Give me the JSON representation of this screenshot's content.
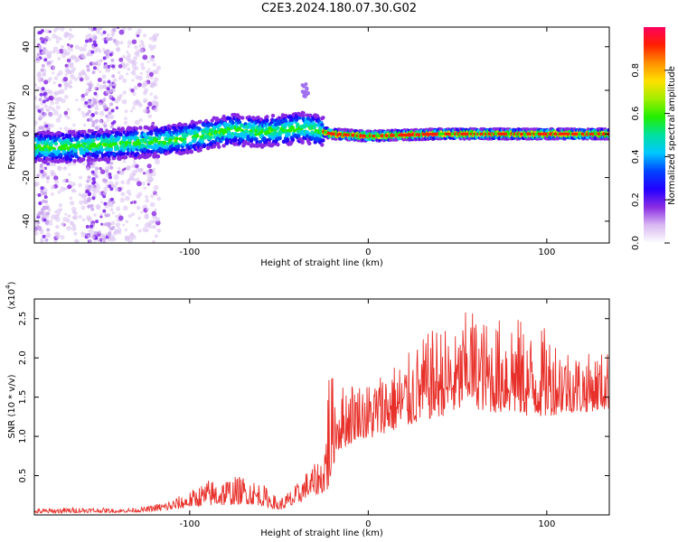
{
  "title": "C2E3.2024.180.07.30.G02",
  "chart_data": [
    {
      "type": "heatmap",
      "xlabel": "Height of straight line (km)",
      "ylabel": "Frequency (Hz)",
      "xlim": [
        -187,
        135
      ],
      "ylim": [
        -50,
        49
      ],
      "x_ticks": [
        -100,
        0,
        100
      ],
      "y_ticks": [
        -40,
        -20,
        0,
        20,
        40
      ],
      "colorbar": {
        "label": "Normalized spectral amplitude",
        "range": [
          0,
          1
        ],
        "ticks": [
          "0.0",
          "0.2",
          "0.4",
          "0.6",
          "0.8"
        ],
        "colors": [
          "#ffffff",
          "#d8b8f2",
          "#8a2be2",
          "#2200ff",
          "#0044ff",
          "#00c8ff",
          "#00e0a0",
          "#22ee00",
          "#a0ee00",
          "#ffe000",
          "#ff9000",
          "#ff2000",
          "#ff0060"
        ]
      },
      "ridge": {
        "x": [
          -187,
          -170,
          -150,
          -130,
          -110,
          -90,
          -75,
          -60,
          -45,
          -35,
          -25,
          -20,
          0,
          40,
          80,
          100,
          120,
          135
        ],
        "y": [
          -6,
          -6,
          -5,
          -4,
          -3,
          0,
          2,
          1,
          2,
          3,
          1,
          0,
          -1,
          0,
          0,
          0,
          0,
          0
        ]
      }
    },
    {
      "type": "line",
      "xlabel": "Height of straight line (km)",
      "ylabel": "SNR (10 * v/v)",
      "y_multiplier": "(x10",
      "y_multiplier_exp": "4",
      "xlim": [
        -187,
        135
      ],
      "ylim": [
        0,
        2.75
      ],
      "x_ticks": [
        -100,
        0,
        100
      ],
      "y_ticks": [
        0.5,
        1.0,
        1.5,
        2.0,
        2.5
      ],
      "y_tick_labels": [
        "0.5",
        "1.0",
        "1.5",
        "2.0",
        "2.5"
      ],
      "series": [
        {
          "color": "#e8302a",
          "envelope": {
            "x": [
              -187,
              -160,
              -140,
              -125,
              -110,
              -100,
              -90,
              -80,
              -70,
              -60,
              -50,
              -40,
              -35,
              -30,
              -25,
              -22,
              -18,
              -10,
              -5,
              0,
              10,
              20,
              30,
              40,
              50,
              57,
              60,
              70,
              80,
              90,
              100,
              110,
              120,
              135
            ],
            "base": [
              0.02,
              0.03,
              0.03,
              0.04,
              0.06,
              0.1,
              0.12,
              0.12,
              0.14,
              0.12,
              0.06,
              0.12,
              0.22,
              0.25,
              0.28,
              0.3,
              0.8,
              0.9,
              1.0,
              0.95,
              1.05,
              1.1,
              1.2,
              1.25,
              1.3,
              1.45,
              1.35,
              1.3,
              1.3,
              1.25,
              1.25,
              1.3,
              1.3,
              1.35
            ],
            "peak": [
              0.08,
              0.1,
              0.08,
              0.1,
              0.2,
              0.3,
              0.45,
              0.48,
              0.5,
              0.42,
              0.2,
              0.4,
              0.55,
              0.65,
              0.8,
              2.0,
              1.6,
              1.75,
              1.7,
              1.7,
              1.9,
              2.0,
              2.25,
              2.45,
              2.3,
              2.75,
              2.55,
              2.45,
              2.65,
              2.35,
              2.4,
              2.2,
              2.05,
              2.1
            ]
          }
        }
      ]
    }
  ]
}
